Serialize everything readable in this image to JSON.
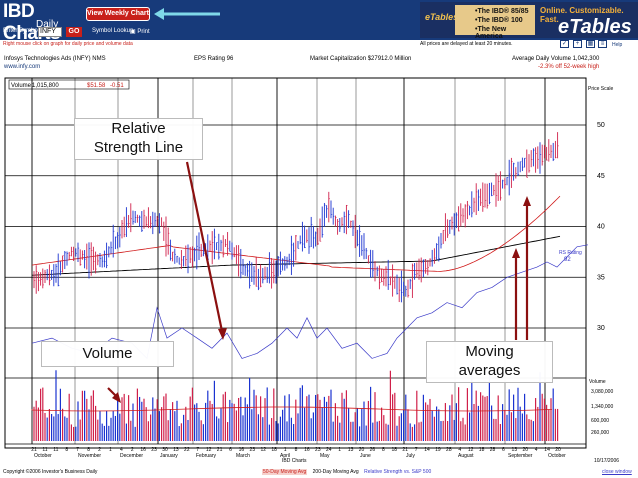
{
  "header": {
    "logo_text": "IBD Charts",
    "logo_sub": "Daily",
    "view_weekly_label": "View Weekly Chart",
    "enter_symbol_label": "Enter Symbol",
    "symbol_value": "INFY",
    "go_label": "GO",
    "symbol_lookup_label": "Symbol Lookup",
    "print_label": "Print"
  },
  "ad": {
    "etables_logo": "eTables",
    "lines": [
      "•The IBD® 85/85",
      "•The IBD® 100",
      "•The New America"
    ],
    "tagline": "Online. Customizable. Fast.",
    "brand": "eTables"
  },
  "subbar": {
    "right_click_note": "Right mouse click on graph for daily price and volume data",
    "delay_note": "All prices are delayed at least 20 minutes.",
    "help_label": "Help"
  },
  "info": {
    "company_name": "Infosys Technologies Ads  (INFY)  NMS",
    "company_url": "www.infy.com",
    "eps_rating": "EPS Rating 96",
    "market_cap": "Market Capitalization  $27912.0 Million",
    "avg_daily_volume": "Average Daily Volume  1,042,300",
    "pct_off_high": "-2.3% off 52-week high"
  },
  "chart": {
    "volume_readout_label": "Volume",
    "volume_readout_value": "1,015,800",
    "price_readout": "$51.58",
    "change_readout": "-0.51",
    "price_scale_label": "Price Scale",
    "price_ticks": [
      30,
      35,
      40,
      45,
      50
    ],
    "rs_rating_label": "RS Rating",
    "rs_rating_value": "92",
    "volume_label": "Volume",
    "volume_ticks": [
      "3,080,000",
      "1,340,000",
      "600,000",
      "260,000"
    ],
    "months": [
      "October",
      "November",
      "December",
      "January",
      "February",
      "March",
      "April",
      "May",
      "June",
      "July",
      "August",
      "September",
      "October"
    ],
    "day_labels": [
      "21",
      "11",
      "11",
      "8",
      "7",
      "8",
      "2",
      "1",
      "4",
      "2",
      "16",
      "23",
      "30",
      "13",
      "22",
      "7",
      "12",
      "21",
      "6",
      "16",
      "23",
      "12",
      "18",
      "1",
      "8",
      "16",
      "23",
      "24",
      "1",
      "13",
      "20",
      "26",
      "8",
      "18",
      "21",
      "7",
      "14",
      "19",
      "28",
      "4",
      "12",
      "18",
      "28",
      "6",
      "13",
      "20",
      "4",
      "14",
      "20"
    ],
    "source_label": "IBD Charts",
    "date_label": "10/17/2006",
    "colors": {
      "price_bar_blue": "#1a33d0",
      "price_bar_red": "#d0204a",
      "ma50": "#d01a1a",
      "ma200": "#000000",
      "rs_line": "#3a3ac8"
    }
  },
  "annotations": {
    "rs_line": "Relative\nStrength Line",
    "rs_line_1": "Relative",
    "rs_line_2": "Strength Line",
    "volume": "Volume",
    "moving_avg_1": "Moving",
    "moving_avg_2": "averages"
  },
  "footer": {
    "copyright": "Copyright ©2006 Investor's Business Daily",
    "legend_50": "50-Day Moving Avg",
    "legend_200": "200-Day Moving Avg",
    "legend_rs": "Relative Strength vs. S&P 500",
    "close_window": "close window"
  }
}
